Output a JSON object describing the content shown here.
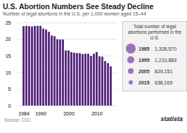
{
  "chart_data": {
    "type": "bar",
    "title": "U.S. Abortion Numbers See Steady Decline",
    "subtitle": "Number of legal abortions in the U.S. per 1,000 women aged 15–44",
    "categories": [
      "1984",
      null,
      null,
      null,
      null,
      null,
      "1990",
      null,
      null,
      null,
      null,
      null,
      null,
      null,
      null,
      null,
      "2000",
      null,
      null,
      null,
      null,
      null,
      null,
      null,
      null,
      null,
      "2010",
      null,
      null,
      null,
      null,
      null
    ],
    "values": [
      23.9,
      24.0,
      23.9,
      23.8,
      24.0,
      24.0,
      24.0,
      23.2,
      22.9,
      22.2,
      21.1,
      20.9,
      20.0,
      19.9,
      19.9,
      16.6,
      16.6,
      16.1,
      15.9,
      15.8,
      15.8,
      15.5,
      15.6,
      15.6,
      14.9,
      15.6,
      16.1,
      14.8,
      14.7,
      13.4,
      12.8,
      11.8
    ],
    "color": "#5b2d82",
    "ylim": [
      0,
      25
    ],
    "yticks": [
      0,
      5,
      10,
      15,
      20,
      25
    ],
    "grid": true,
    "bubble_legend": {
      "title": "Total number of legal\nabortions performed in the U.S.",
      "categories": [
        "1985",
        "1995",
        "2005",
        "2015"
      ],
      "values": [
        1328570,
        1210883,
        829151,
        638169
      ],
      "value_labels": [
        "1,328,570",
        "1,210,883",
        "829,151",
        "638,169"
      ],
      "sizes": [
        22,
        18,
        14,
        11
      ],
      "color": "#9b72bf"
    },
    "source": "Source: CDC",
    "brand": "statista"
  }
}
